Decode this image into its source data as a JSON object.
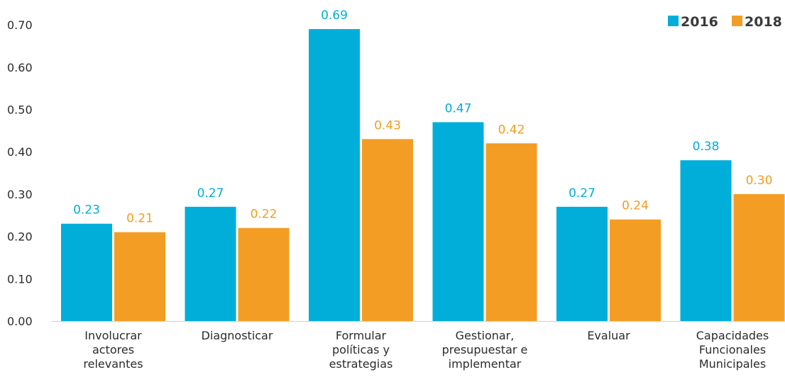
{
  "chart_data": {
    "type": "bar",
    "categories": [
      [
        "Involucrar",
        "actores",
        "relevantes"
      ],
      [
        "Diagnosticar"
      ],
      [
        "Formular",
        "políticas y",
        "estrategias"
      ],
      [
        "Gestionar,",
        "presupuestar e",
        "implementar"
      ],
      [
        "Evaluar"
      ],
      [
        "Capacidades",
        "Funcionales",
        "Municipales"
      ]
    ],
    "series": [
      {
        "name": "2016",
        "color": "#00AEDA",
        "values": [
          0.23,
          0.27,
          0.69,
          0.47,
          0.27,
          0.38
        ],
        "labels": [
          "0.23",
          "0.27",
          "0.69",
          "0.47",
          "0.27",
          "0.38"
        ]
      },
      {
        "name": "2018",
        "color": "#F49D24",
        "values": [
          0.21,
          0.22,
          0.43,
          0.42,
          0.24,
          0.3
        ],
        "labels": [
          "0.21",
          "0.22",
          "0.43",
          "0.42",
          "0.24",
          "0.30"
        ]
      }
    ],
    "yticks": [
      "0.00",
      "0.10",
      "0.20",
      "0.30",
      "0.40",
      "0.50",
      "0.60",
      "0.70"
    ],
    "ylim": [
      0,
      0.7
    ],
    "grid": false,
    "legend": "top-right",
    "title": "",
    "xlabel": "",
    "ylabel": ""
  }
}
